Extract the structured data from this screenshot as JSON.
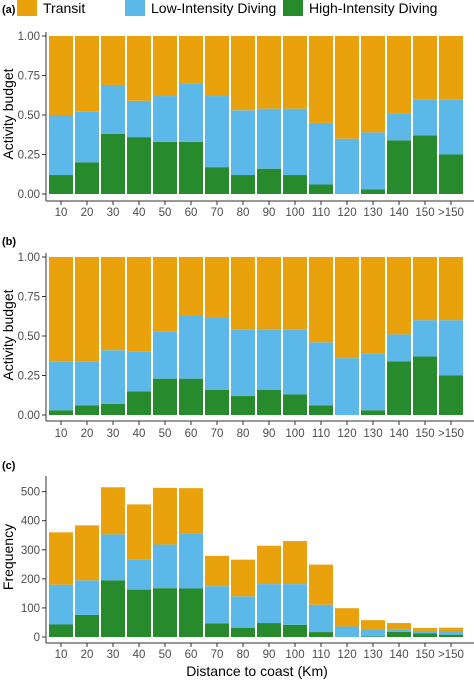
{
  "legend": [
    {
      "label": "Transit",
      "color": "#E9A20C"
    },
    {
      "label": "Low-Intensity Diving",
      "color": "#5BB8E8"
    },
    {
      "label": "High-Intensity Diving",
      "color": "#278A2C"
    }
  ],
  "chart_data": [
    {
      "panel": "(a)",
      "type": "bar",
      "stacked": true,
      "ylabel": "Activity budget",
      "xlabel": "",
      "ylim": [
        0,
        1
      ],
      "yticks": [
        "0.00",
        "0.25",
        "0.50",
        "0.75",
        "1.00"
      ],
      "categories": [
        "10",
        "20",
        "30",
        "40",
        "50",
        "60",
        "70",
        "80",
        "90",
        "100",
        "110",
        "120",
        "130",
        "140",
        "150",
        ">150"
      ],
      "series": [
        {
          "name": "High-Intensity Diving",
          "values": [
            0.12,
            0.2,
            0.38,
            0.36,
            0.33,
            0.33,
            0.17,
            0.12,
            0.16,
            0.12,
            0.06,
            0.0,
            0.03,
            0.34,
            0.37,
            0.25
          ]
        },
        {
          "name": "Low-Intensity Diving",
          "values": [
            0.38,
            0.32,
            0.31,
            0.23,
            0.29,
            0.37,
            0.45,
            0.41,
            0.38,
            0.42,
            0.39,
            0.35,
            0.36,
            0.17,
            0.23,
            0.35
          ]
        },
        {
          "name": "Transit",
          "values": [
            0.5,
            0.48,
            0.31,
            0.41,
            0.38,
            0.3,
            0.38,
            0.47,
            0.46,
            0.46,
            0.55,
            0.65,
            0.61,
            0.49,
            0.4,
            0.4
          ]
        }
      ]
    },
    {
      "panel": "(b)",
      "type": "bar",
      "stacked": true,
      "ylabel": "Activity budget",
      "xlabel": "",
      "ylim": [
        0,
        1
      ],
      "yticks": [
        "0.00",
        "0.25",
        "0.50",
        "0.75",
        "1.00"
      ],
      "categories": [
        "10",
        "20",
        "30",
        "40",
        "50",
        "60",
        "70",
        "80",
        "90",
        "100",
        "110",
        "120",
        "130",
        "140",
        "150",
        ">150"
      ],
      "series": [
        {
          "name": "High-Intensity Diving",
          "values": [
            0.03,
            0.06,
            0.07,
            0.15,
            0.23,
            0.23,
            0.16,
            0.12,
            0.16,
            0.13,
            0.06,
            0.0,
            0.03,
            0.34,
            0.37,
            0.25
          ]
        },
        {
          "name": "Low-Intensity Diving",
          "values": [
            0.31,
            0.28,
            0.34,
            0.25,
            0.3,
            0.4,
            0.46,
            0.42,
            0.38,
            0.41,
            0.4,
            0.36,
            0.36,
            0.17,
            0.23,
            0.35
          ]
        },
        {
          "name": "Transit",
          "values": [
            0.66,
            0.66,
            0.59,
            0.6,
            0.47,
            0.37,
            0.38,
            0.46,
            0.46,
            0.46,
            0.54,
            0.64,
            0.61,
            0.49,
            0.4,
            0.4
          ]
        }
      ]
    },
    {
      "panel": "(c)",
      "type": "bar",
      "stacked": true,
      "ylabel": "Frequency",
      "xlabel": "Distance to coast (Km)",
      "ylim": [
        0,
        540
      ],
      "yticks": [
        "0",
        "100",
        "200",
        "300",
        "400",
        "500"
      ],
      "categories": [
        "10",
        "20",
        "30",
        "40",
        "50",
        "60",
        "70",
        "80",
        "90",
        "100",
        "110",
        "120",
        "130",
        "140",
        "150",
        ">150"
      ],
      "series": [
        {
          "name": "High-Intensity Diving",
          "values": [
            43,
            76,
            195,
            163,
            168,
            167,
            47,
            32,
            48,
            42,
            17,
            0,
            2,
            18,
            12,
            8
          ]
        },
        {
          "name": "Low-Intensity Diving",
          "values": [
            137,
            119,
            158,
            103,
            150,
            190,
            128,
            108,
            134,
            140,
            94,
            36,
            22,
            9,
            9,
            11
          ]
        },
        {
          "name": "Transit",
          "values": [
            180,
            189,
            162,
            190,
            195,
            155,
            104,
            126,
            132,
            148,
            138,
            63,
            34,
            21,
            10,
            13
          ]
        }
      ]
    }
  ]
}
